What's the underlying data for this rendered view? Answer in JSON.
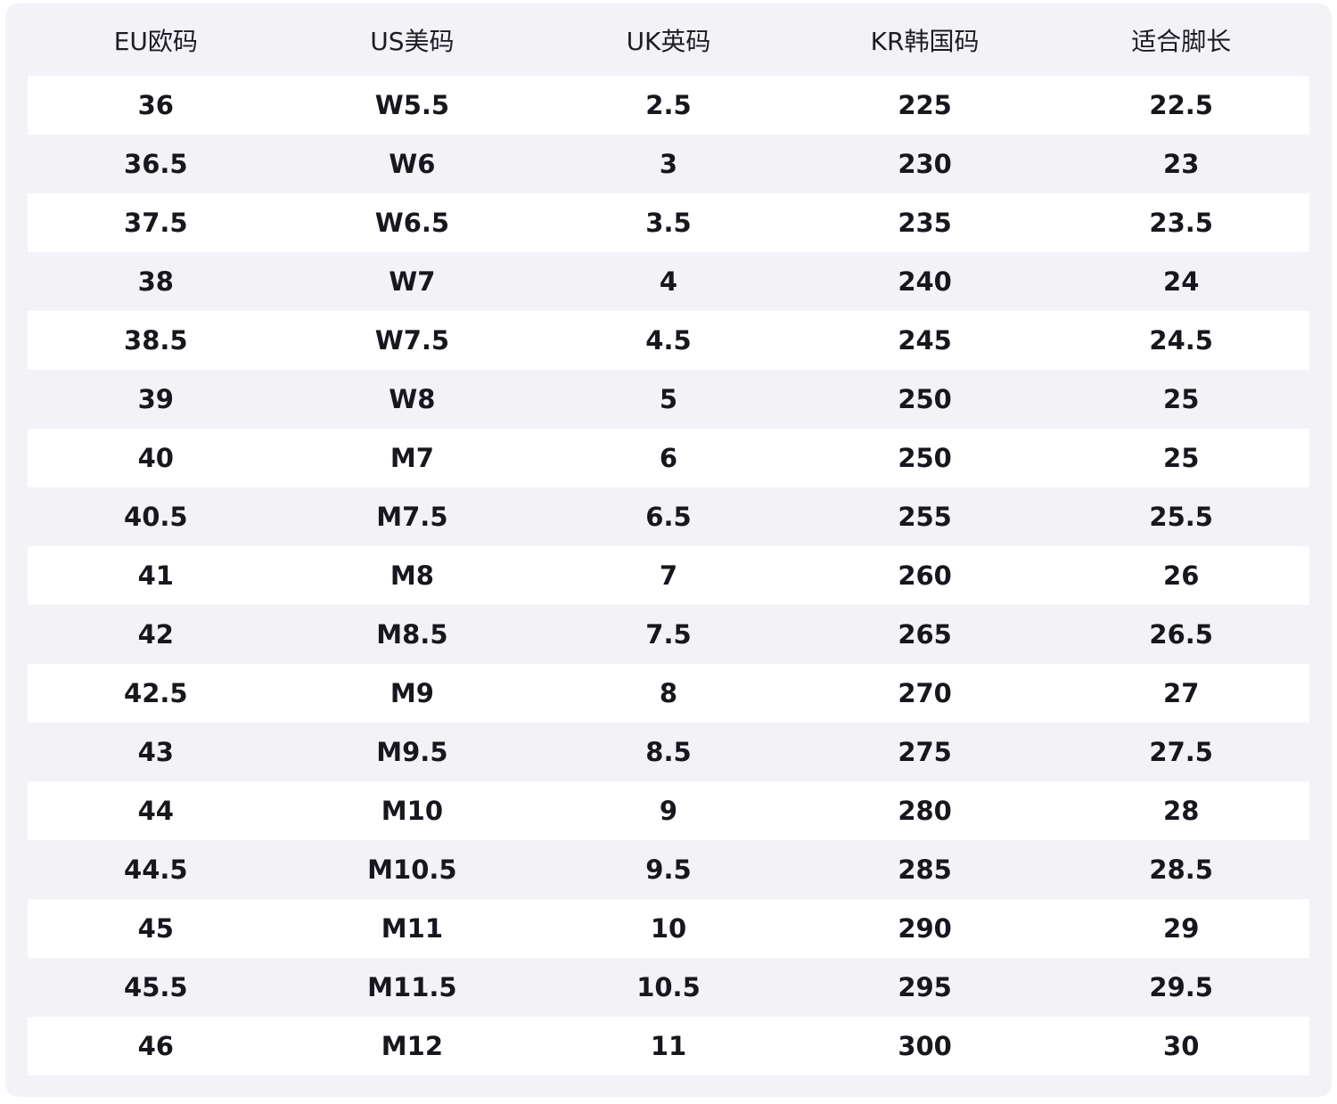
{
  "chart_data": {
    "type": "table",
    "columns": [
      "EU欧码",
      "US美码",
      "UK英码",
      "KR韩国码",
      "适合脚长"
    ],
    "rows": [
      [
        "36",
        "W5.5",
        "2.5",
        "225",
        "22.5"
      ],
      [
        "36.5",
        "W6",
        "3",
        "230",
        "23"
      ],
      [
        "37.5",
        "W6.5",
        "3.5",
        "235",
        "23.5"
      ],
      [
        "38",
        "W7",
        "4",
        "240",
        "24"
      ],
      [
        "38.5",
        "W7.5",
        "4.5",
        "245",
        "24.5"
      ],
      [
        "39",
        "W8",
        "5",
        "250",
        "25"
      ],
      [
        "40",
        "M7",
        "6",
        "250",
        "25"
      ],
      [
        "40.5",
        "M7.5",
        "6.5",
        "255",
        "25.5"
      ],
      [
        "41",
        "M8",
        "7",
        "260",
        "26"
      ],
      [
        "42",
        "M8.5",
        "7.5",
        "265",
        "26.5"
      ],
      [
        "42.5",
        "M9",
        "8",
        "270",
        "27"
      ],
      [
        "43",
        "M9.5",
        "8.5",
        "275",
        "27.5"
      ],
      [
        "44",
        "M10",
        "9",
        "280",
        "28"
      ],
      [
        "44.5",
        "M10.5",
        "9.5",
        "285",
        "28.5"
      ],
      [
        "45",
        "M11",
        "10",
        "290",
        "29"
      ],
      [
        "45.5",
        "M11.5",
        "10.5",
        "295",
        "29.5"
      ],
      [
        "46",
        "M12",
        "11",
        "300",
        "30"
      ]
    ],
    "layout": {
      "stripe_pattern": "odd-rows-white",
      "grid": "off",
      "legend": "none"
    }
  },
  "colors": {
    "page_bg": "#ffffff",
    "panel_bg": "#f2f2f7",
    "row_stripe_bg": "#ffffff",
    "header_text": "#1c1c25",
    "cell_text": "#17171e"
  }
}
